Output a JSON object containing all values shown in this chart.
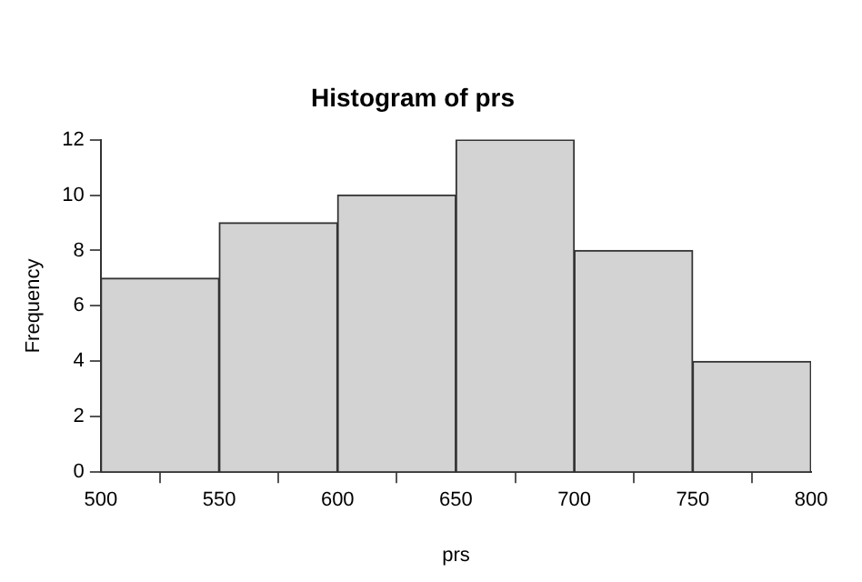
{
  "chart_data": {
    "type": "histogram",
    "title": "Histogram of prs",
    "xlabel": "prs",
    "ylabel": "Frequency",
    "bins": [
      500,
      550,
      600,
      650,
      700,
      750,
      800
    ],
    "values": [
      7,
      9,
      10,
      12,
      8,
      4
    ],
    "color": "#d3d3d3",
    "xlim": [
      500,
      800
    ],
    "xticks": [
      500,
      550,
      600,
      650,
      700,
      750,
      800
    ],
    "ylim": [
      0,
      12
    ],
    "yticks": [
      0,
      2,
      4,
      6,
      8,
      10,
      12
    ],
    "grid": false,
    "legend": false
  }
}
